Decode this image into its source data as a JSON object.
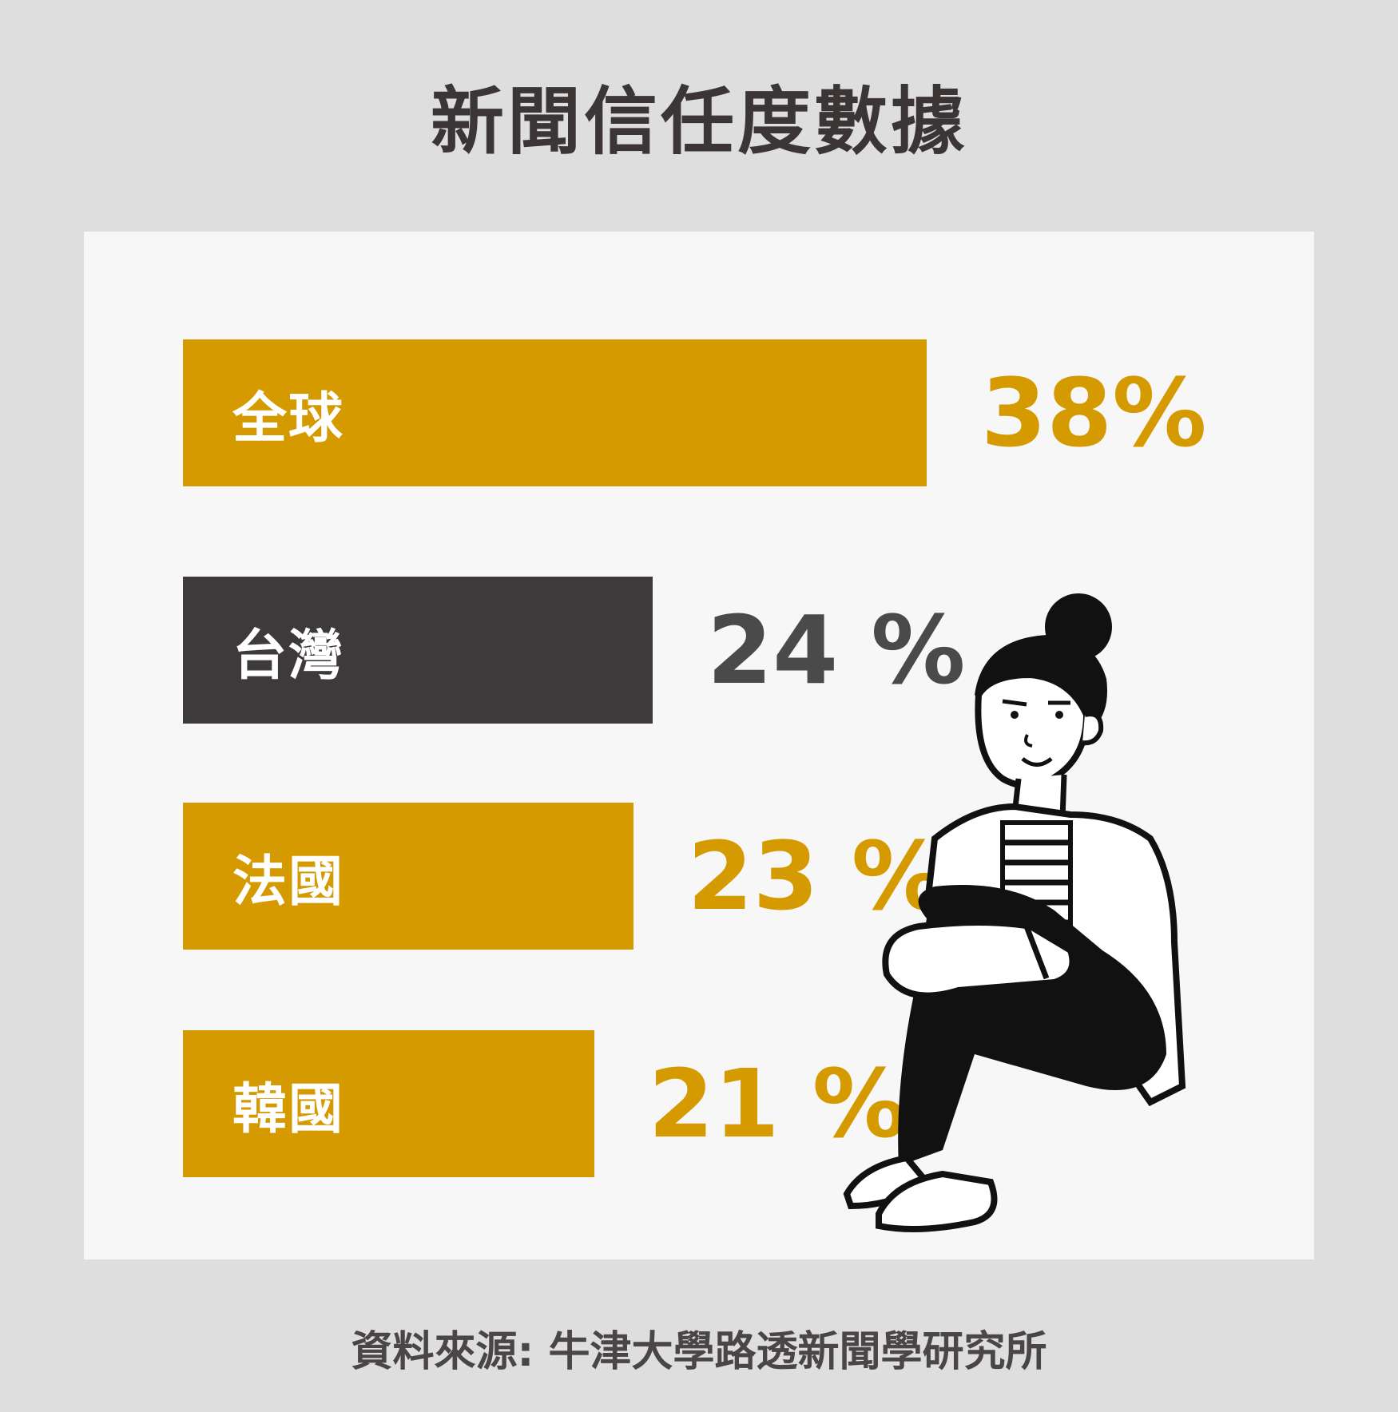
{
  "title": "新聞信任度數據",
  "source": "資料來源: 牛津大學路透新聞學研究所",
  "colors": {
    "gold": "#d49a00",
    "dark": "#3e3a3b",
    "value_dark": "#4a4a4a",
    "background": "#dedede",
    "panel": "#f7f7f7"
  },
  "chart_data": {
    "type": "bar",
    "orientation": "horizontal",
    "categories": [
      "全球",
      "台灣",
      "法國",
      "韓國"
    ],
    "values": [
      38,
      24,
      23,
      21
    ],
    "value_labels": [
      "38%",
      "24 %",
      "23 %",
      "21 %"
    ],
    "bar_colors": [
      "#d49a00",
      "#3e3a3b",
      "#d49a00",
      "#d49a00"
    ],
    "value_colors": [
      "#d49a00",
      "#4a4a4a",
      "#d49a00",
      "#d49a00"
    ],
    "unit": "%",
    "title": "新聞信任度數據",
    "xlabel": "",
    "ylabel": ""
  }
}
